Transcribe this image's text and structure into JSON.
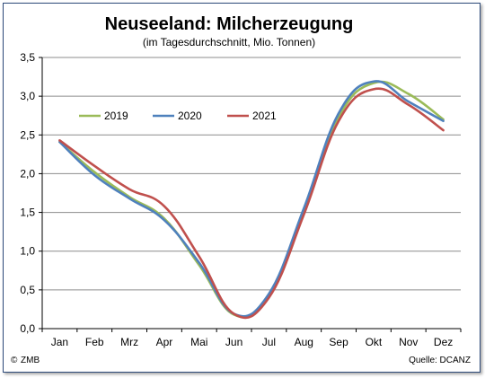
{
  "chart_data": {
    "type": "line",
    "title": "Neuseeland: Milcherzeugung",
    "subtitle": "(im Tagesdurchschnitt, Mio. Tonnen)",
    "categories": [
      "Jan",
      "Feb",
      "Mrz",
      "Apr",
      "Mai",
      "Jun",
      "Jul",
      "Aug",
      "Sep",
      "Okt",
      "Nov",
      "Dez"
    ],
    "ylim": [
      0,
      3.5
    ],
    "yticks": [
      "0,0",
      "0,5",
      "1,0",
      "1,5",
      "2,0",
      "2,5",
      "3,0",
      "3,5"
    ],
    "grid": true,
    "legend_position": "top-left",
    "series": [
      {
        "name": "2019",
        "color": "#9bbb59",
        "values": [
          2.41,
          2.02,
          1.7,
          1.42,
          0.82,
          0.18,
          0.42,
          1.5,
          2.73,
          3.17,
          3.03,
          2.7
        ]
      },
      {
        "name": "2020",
        "color": "#4f81bd",
        "values": [
          2.41,
          1.98,
          1.68,
          1.4,
          0.85,
          0.19,
          0.45,
          1.55,
          2.78,
          3.19,
          2.93,
          2.68
        ]
      },
      {
        "name": "2021",
        "color": "#c0504d",
        "values": [
          2.43,
          2.1,
          1.8,
          1.58,
          0.93,
          0.19,
          0.4,
          1.47,
          2.68,
          3.09,
          2.89,
          2.56
        ]
      }
    ]
  },
  "footer": {
    "left": "ZMB",
    "copyright_symbol": "©",
    "right": "Quelle: DCANZ"
  }
}
